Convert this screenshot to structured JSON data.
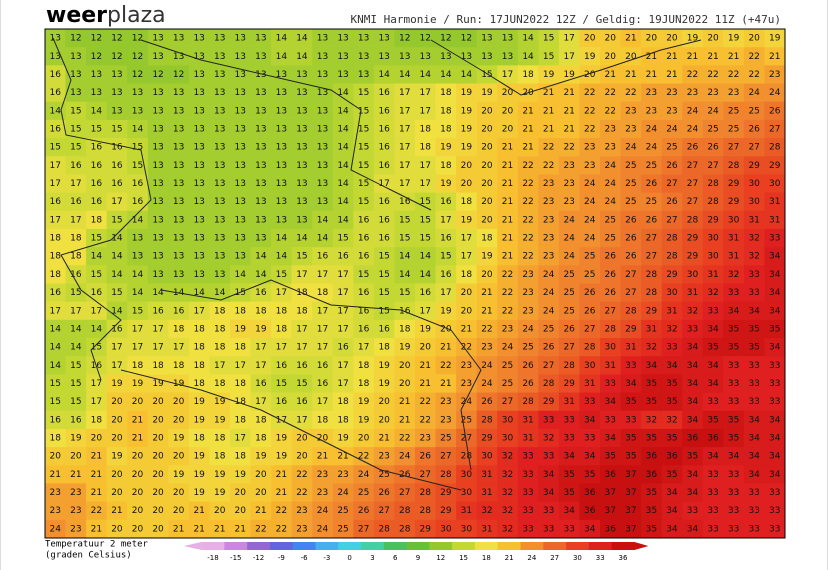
{
  "header": {
    "logo": [
      "weer",
      "plaza"
    ],
    "info": "KNMI Harmonie  /  Run: 17JUN2022 12Z  /  Geldig: 19JUN2022 11Z (+47u)"
  },
  "map": {
    "type": "grid",
    "rows": [
      [
        13,
        12,
        12,
        12,
        12,
        13,
        13,
        13,
        13,
        13,
        13,
        14,
        14,
        13,
        13,
        13,
        13,
        12,
        12,
        12,
        12,
        13,
        13,
        14,
        15,
        17,
        20,
        20,
        21,
        20,
        20,
        19,
        20,
        19,
        20,
        19
      ],
      [
        13,
        13,
        12,
        12,
        12,
        13,
        13,
        13,
        13,
        13,
        13,
        14,
        14,
        13,
        13,
        13,
        13,
        13,
        13,
        13,
        13,
        13,
        13,
        14,
        15,
        17,
        19,
        20,
        20,
        21,
        21,
        21,
        21,
        21,
        22,
        21
      ],
      [
        16,
        13,
        13,
        13,
        12,
        12,
        12,
        13,
        13,
        13,
        13,
        13,
        13,
        13,
        13,
        13,
        14,
        14,
        14,
        14,
        14,
        15,
        17,
        18,
        19,
        19,
        20,
        21,
        21,
        21,
        21,
        22,
        22,
        22,
        22,
        23
      ],
      [
        16,
        13,
        13,
        13,
        13,
        13,
        13,
        13,
        13,
        13,
        13,
        13,
        13,
        13,
        14,
        15,
        16,
        17,
        17,
        18,
        19,
        19,
        20,
        20,
        21,
        21,
        22,
        22,
        22,
        23,
        23,
        23,
        23,
        23,
        24,
        24
      ],
      [
        14,
        15,
        14,
        13,
        13,
        13,
        13,
        13,
        13,
        13,
        13,
        13,
        13,
        13,
        14,
        15,
        16,
        17,
        17,
        18,
        19,
        20,
        20,
        21,
        21,
        21,
        22,
        22,
        23,
        23,
        23,
        24,
        24,
        25,
        25,
        26
      ],
      [
        16,
        15,
        15,
        15,
        14,
        13,
        13,
        13,
        13,
        13,
        13,
        13,
        13,
        13,
        14,
        15,
        16,
        17,
        18,
        18,
        19,
        20,
        20,
        21,
        21,
        21,
        22,
        23,
        23,
        24,
        24,
        24,
        25,
        25,
        26,
        27
      ],
      [
        15,
        15,
        16,
        16,
        15,
        13,
        13,
        13,
        13,
        13,
        13,
        13,
        13,
        13,
        14,
        15,
        16,
        17,
        18,
        19,
        19,
        20,
        21,
        21,
        22,
        22,
        23,
        23,
        24,
        24,
        25,
        26,
        26,
        27,
        27,
        28
      ],
      [
        17,
        16,
        16,
        16,
        15,
        13,
        13,
        13,
        13,
        13,
        13,
        13,
        13,
        13,
        14,
        15,
        16,
        17,
        17,
        18,
        20,
        20,
        21,
        22,
        22,
        23,
        23,
        24,
        25,
        25,
        26,
        27,
        27,
        28,
        29,
        29
      ],
      [
        17,
        17,
        16,
        16,
        16,
        13,
        13,
        13,
        13,
        13,
        13,
        13,
        13,
        13,
        14,
        15,
        17,
        17,
        17,
        19,
        20,
        20,
        21,
        22,
        23,
        23,
        24,
        24,
        25,
        26,
        27,
        27,
        28,
        29,
        30,
        30
      ],
      [
        16,
        16,
        16,
        17,
        16,
        13,
        13,
        13,
        13,
        13,
        13,
        13,
        13,
        13,
        14,
        15,
        16,
        16,
        15,
        16,
        18,
        20,
        21,
        22,
        23,
        23,
        24,
        24,
        25,
        25,
        26,
        27,
        28,
        29,
        30,
        31
      ],
      [
        17,
        17,
        18,
        15,
        14,
        13,
        13,
        13,
        13,
        13,
        13,
        13,
        13,
        14,
        14,
        16,
        16,
        15,
        15,
        17,
        19,
        20,
        21,
        22,
        23,
        24,
        24,
        25,
        26,
        26,
        27,
        28,
        29,
        30,
        31,
        31
      ],
      [
        18,
        18,
        15,
        14,
        13,
        13,
        13,
        13,
        13,
        13,
        13,
        14,
        14,
        14,
        15,
        16,
        16,
        15,
        15,
        16,
        17,
        18,
        21,
        22,
        23,
        24,
        24,
        25,
        26,
        27,
        28,
        29,
        30,
        31,
        32,
        33
      ],
      [
        18,
        18,
        14,
        14,
        13,
        13,
        13,
        13,
        13,
        13,
        14,
        14,
        15,
        16,
        16,
        16,
        15,
        14,
        14,
        15,
        17,
        19,
        21,
        22,
        23,
        24,
        25,
        26,
        26,
        27,
        28,
        29,
        30,
        31,
        32,
        34
      ],
      [
        18,
        16,
        15,
        14,
        14,
        13,
        13,
        13,
        13,
        14,
        14,
        15,
        17,
        17,
        17,
        15,
        15,
        14,
        14,
        16,
        18,
        20,
        22,
        23,
        24,
        25,
        25,
        26,
        27,
        28,
        29,
        30,
        31,
        32,
        33,
        34
      ],
      [
        16,
        15,
        16,
        15,
        14,
        14,
        14,
        14,
        14,
        15,
        16,
        17,
        18,
        18,
        17,
        16,
        15,
        15,
        16,
        17,
        20,
        21,
        22,
        23,
        24,
        25,
        26,
        26,
        27,
        28,
        30,
        31,
        32,
        33,
        33,
        34
      ],
      [
        17,
        17,
        17,
        14,
        15,
        16,
        16,
        17,
        18,
        18,
        18,
        18,
        18,
        17,
        17,
        16,
        15,
        16,
        17,
        19,
        20,
        21,
        22,
        23,
        24,
        25,
        26,
        27,
        28,
        29,
        31,
        32,
        33,
        34,
        34,
        34
      ],
      [
        14,
        14,
        14,
        16,
        17,
        17,
        18,
        18,
        18,
        19,
        19,
        18,
        17,
        17,
        17,
        16,
        16,
        18,
        19,
        20,
        21,
        22,
        23,
        24,
        25,
        26,
        27,
        28,
        29,
        31,
        32,
        33,
        34,
        35,
        35,
        35
      ],
      [
        14,
        14,
        15,
        17,
        17,
        17,
        17,
        18,
        18,
        18,
        17,
        17,
        17,
        17,
        16,
        17,
        18,
        19,
        20,
        21,
        22,
        23,
        24,
        25,
        26,
        27,
        28,
        30,
        31,
        32,
        33,
        34,
        35,
        35,
        35,
        34
      ],
      [
        14,
        15,
        16,
        17,
        18,
        18,
        18,
        18,
        17,
        17,
        17,
        16,
        16,
        16,
        17,
        18,
        19,
        20,
        21,
        22,
        23,
        24,
        25,
        26,
        27,
        28,
        30,
        31,
        33,
        34,
        34,
        34,
        34,
        33,
        33,
        33
      ],
      [
        15,
        15,
        17,
        19,
        19,
        19,
        19,
        18,
        18,
        18,
        16,
        15,
        15,
        16,
        17,
        18,
        19,
        20,
        21,
        21,
        23,
        24,
        25,
        26,
        28,
        29,
        31,
        33,
        34,
        35,
        35,
        34,
        34,
        33,
        33,
        33
      ],
      [
        15,
        15,
        17,
        20,
        20,
        20,
        20,
        19,
        19,
        18,
        17,
        16,
        16,
        17,
        18,
        19,
        20,
        21,
        22,
        23,
        24,
        26,
        27,
        28,
        29,
        31,
        33,
        34,
        35,
        35,
        35,
        34,
        33,
        33,
        33,
        33
      ],
      [
        16,
        16,
        18,
        20,
        21,
        20,
        20,
        19,
        19,
        18,
        18,
        17,
        17,
        18,
        18,
        19,
        20,
        21,
        22,
        23,
        25,
        28,
        30,
        31,
        33,
        33,
        34,
        33,
        33,
        32,
        32,
        34,
        35,
        35,
        34,
        34
      ],
      [
        18,
        19,
        20,
        20,
        21,
        20,
        19,
        18,
        18,
        17,
        18,
        19,
        20,
        20,
        19,
        20,
        21,
        22,
        23,
        25,
        27,
        29,
        30,
        31,
        32,
        33,
        33,
        34,
        35,
        35,
        35,
        36,
        36,
        35,
        34,
        34
      ],
      [
        20,
        20,
        21,
        19,
        20,
        20,
        20,
        19,
        18,
        18,
        19,
        19,
        20,
        21,
        21,
        22,
        23,
        24,
        26,
        27,
        28,
        30,
        32,
        33,
        33,
        34,
        34,
        35,
        35,
        36,
        36,
        35,
        34,
        34,
        34,
        34
      ],
      [
        21,
        21,
        21,
        20,
        20,
        20,
        19,
        19,
        19,
        19,
        20,
        21,
        22,
        23,
        23,
        24,
        25,
        26,
        27,
        28,
        30,
        31,
        32,
        33,
        34,
        35,
        35,
        36,
        37,
        36,
        35,
        34,
        33,
        33,
        34,
        34
      ],
      [
        23,
        23,
        21,
        20,
        20,
        20,
        20,
        19,
        19,
        20,
        20,
        21,
        22,
        23,
        24,
        25,
        26,
        27,
        28,
        29,
        30,
        31,
        32,
        33,
        34,
        35,
        36,
        37,
        37,
        35,
        34,
        34,
        33,
        33,
        33,
        33
      ],
      [
        23,
        23,
        22,
        21,
        20,
        20,
        20,
        21,
        20,
        20,
        21,
        22,
        23,
        24,
        25,
        26,
        27,
        28,
        28,
        29,
        31,
        32,
        32,
        33,
        33,
        34,
        36,
        37,
        37,
        35,
        34,
        33,
        33,
        33,
        33,
        33
      ],
      [
        24,
        23,
        21,
        20,
        20,
        20,
        21,
        21,
        21,
        21,
        22,
        22,
        23,
        24,
        25,
        27,
        28,
        28,
        29,
        30,
        30,
        31,
        32,
        33,
        33,
        33,
        34,
        36,
        37,
        35,
        34,
        34,
        33,
        33,
        33,
        33
      ]
    ]
  },
  "legend": {
    "title": [
      "Temperatuur 2 meter",
      "(graden Celsius)"
    ],
    "scale": [
      {
        "value": -18,
        "color": "#e6b0e6"
      },
      {
        "value": -15,
        "color": "#c888e0"
      },
      {
        "value": -12,
        "color": "#9468d4"
      },
      {
        "value": -9,
        "color": "#6464e0"
      },
      {
        "value": -6,
        "color": "#4484f0"
      },
      {
        "value": -3,
        "color": "#44b0f0"
      },
      {
        "value": 0,
        "color": "#44d0e4"
      },
      {
        "value": 3,
        "color": "#44d0a4"
      },
      {
        "value": 6,
        "color": "#48c064"
      },
      {
        "value": 9,
        "color": "#68c034"
      },
      {
        "value": 12,
        "color": "#94c82c"
      },
      {
        "value": 15,
        "color": "#c4d834"
      },
      {
        "value": 18,
        "color": "#f0e040"
      },
      {
        "value": 21,
        "color": "#f8c030"
      },
      {
        "value": 24,
        "color": "#f29030"
      },
      {
        "value": 27,
        "color": "#ec6828"
      },
      {
        "value": 30,
        "color": "#e84020"
      },
      {
        "value": 33,
        "color": "#e02020"
      },
      {
        "value": 36,
        "color": "#c81010"
      }
    ]
  }
}
